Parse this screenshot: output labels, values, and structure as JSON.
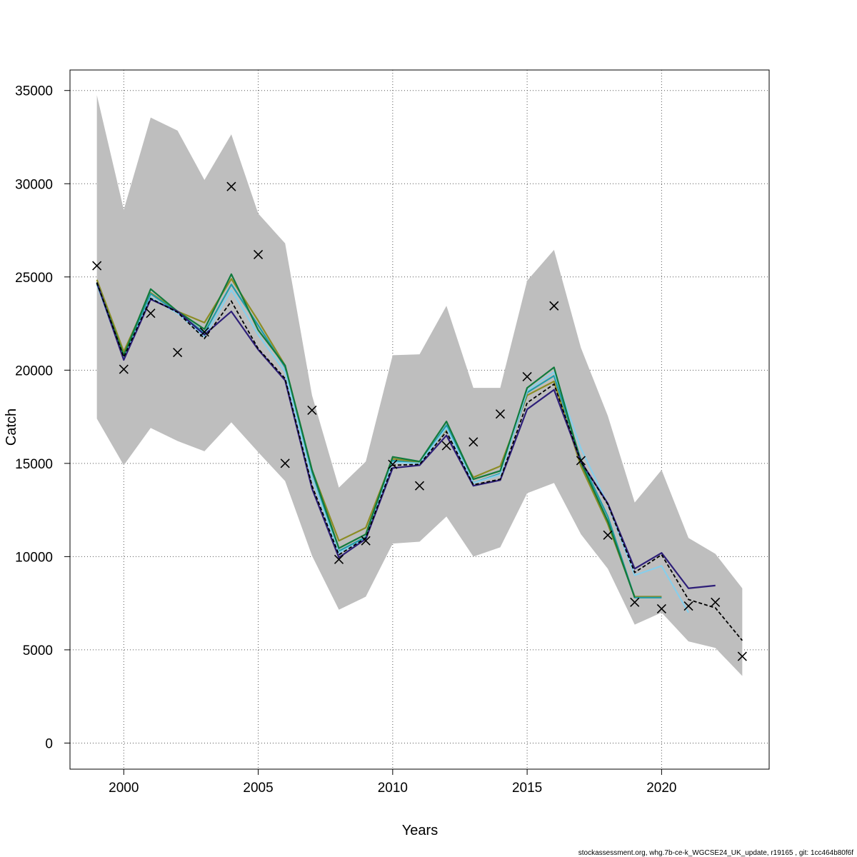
{
  "chart_data": {
    "type": "line",
    "title": "",
    "xlabel": "Years",
    "ylabel": "Catch",
    "xlim": [
      1998,
      2024
    ],
    "ylim": [
      -1400,
      36100
    ],
    "x_ticks": [
      2000,
      2005,
      2010,
      2015,
      2020
    ],
    "y_ticks": [
      0,
      5000,
      10000,
      15000,
      20000,
      25000,
      30000,
      35000
    ],
    "grid": true,
    "footer": "stockassessment.org, whg.7b-ce-k_WGCSE24_UK_update, r19165 , git: 1cc464b80f6f",
    "confidence_band": {
      "color": "#bebebe",
      "x": [
        1999,
        2000,
        2001,
        2002,
        2003,
        2004,
        2005,
        2006,
        2007,
        2008,
        2009,
        2010,
        2011,
        2012,
        2013,
        2014,
        2015,
        2016,
        2017,
        2018,
        2019,
        2020,
        2021,
        2022,
        2023
      ],
      "lower": [
        17400,
        14900,
        16900,
        16200,
        15650,
        17200,
        15600,
        14050,
        10050,
        7150,
        7850,
        10700,
        10800,
        12150,
        10000,
        10500,
        13400,
        13950,
        11200,
        9350,
        6350,
        7000,
        5450,
        5100,
        3600
      ],
      "upper": [
        34750,
        28600,
        33550,
        32850,
        30200,
        32650,
        28400,
        26800,
        18650,
        13700,
        15100,
        20800,
        20850,
        23450,
        19050,
        19050,
        24800,
        26450,
        21200,
        17550,
        12900,
        14650,
        11000,
        10150,
        8300
      ]
    },
    "observed": {
      "marker": "x",
      "x": [
        1999,
        2000,
        2001,
        2002,
        2003,
        2004,
        2005,
        2006,
        2007,
        2008,
        2009,
        2010,
        2011,
        2012,
        2013,
        2014,
        2015,
        2016,
        2017,
        2018,
        2019,
        2020,
        2021,
        2022,
        2023
      ],
      "values": [
        25600,
        20050,
        23050,
        20950,
        22050,
        29850,
        26200,
        15000,
        17850,
        9850,
        10850,
        14950,
        13800,
        15950,
        16150,
        17650,
        19650,
        23450,
        15150,
        11150,
        7550,
        7200,
        7350,
        7550,
        4650
      ]
    },
    "series": [
      {
        "color": "#8c8c24",
        "x": [
          1999,
          2000,
          2001,
          2002,
          2003,
          2004,
          2005,
          2006,
          2007,
          2008,
          2009,
          2010,
          2011,
          2012,
          2013,
          2014,
          2015,
          2016,
          2017,
          2018,
          2019,
          2020
        ],
        "values": [
          24850,
          21000,
          24150,
          23150,
          22550,
          24900,
          22650,
          20250,
          14650,
          10850,
          11550,
          15250,
          15050,
          16850,
          14250,
          14850,
          18650,
          19400,
          14850,
          11750,
          7850,
          7850
        ]
      },
      {
        "color": "#1f9ca8",
        "x": [
          1999,
          2000,
          2001,
          2002,
          2003,
          2004,
          2005,
          2006,
          2007,
          2008,
          2009,
          2010,
          2011,
          2012,
          2013,
          2014,
          2015,
          2016,
          2017,
          2018,
          2019,
          2020
        ],
        "values": [
          24700,
          20700,
          24100,
          23100,
          22000,
          24600,
          22400,
          20150,
          14550,
          10300,
          11050,
          15150,
          15000,
          17050,
          13950,
          14450,
          18800,
          19700,
          15200,
          12150,
          7800,
          7800
        ]
      },
      {
        "color": "#87ceeb",
        "x": [
          1999,
          2000,
          2001,
          2002,
          2003,
          2004,
          2005,
          2006,
          2007,
          2008,
          2009,
          2010,
          2011,
          2012,
          2013,
          2014,
          2015,
          2016,
          2017,
          2018,
          2019,
          2020,
          2021
        ],
        "values": [
          24600,
          20600,
          23900,
          23050,
          21800,
          24300,
          21900,
          19900,
          14200,
          10200,
          10950,
          15050,
          15000,
          16900,
          13950,
          14400,
          18900,
          19900,
          15800,
          12800,
          9000,
          9500,
          7000
        ]
      },
      {
        "color": "#117a3c",
        "x": [
          1999,
          2000,
          2001,
          2002,
          2003,
          2004,
          2005,
          2006,
          2007,
          2008,
          2009,
          2010,
          2011,
          2012,
          2013,
          2014,
          2015,
          2016,
          2017,
          2018,
          2019
        ],
        "values": [
          24650,
          20800,
          24350,
          23150,
          22200,
          25150,
          22150,
          20250,
          14650,
          10450,
          11200,
          15350,
          15100,
          17250,
          14150,
          14600,
          19050,
          20150,
          15050,
          11900,
          7800
        ]
      },
      {
        "color": "#2d1e78",
        "x": [
          1999,
          2000,
          2001,
          2002,
          2003,
          2004,
          2005,
          2006,
          2007,
          2008,
          2009,
          2010,
          2011,
          2012,
          2013,
          2014,
          2015,
          2016,
          2017,
          2018,
          2019,
          2020,
          2021,
          2022
        ],
        "values": [
          24700,
          20550,
          23800,
          23150,
          21900,
          23150,
          21100,
          19450,
          13650,
          9950,
          10950,
          14750,
          14900,
          16500,
          13800,
          14100,
          17900,
          18950,
          15100,
          12850,
          9350,
          10200,
          8300,
          8450
        ]
      }
    ],
    "estimate": {
      "color": "#000000",
      "style": "dashed",
      "x": [
        1999,
        2000,
        2001,
        2002,
        2003,
        2004,
        2005,
        2006,
        2007,
        2008,
        2009,
        2010,
        2011,
        2012,
        2013,
        2014,
        2015,
        2016,
        2017,
        2018,
        2019,
        2020,
        2021,
        2022,
        2023
      ],
      "values": [
        24700,
        20700,
        23850,
        23100,
        21700,
        23700,
        21150,
        19550,
        13800,
        10100,
        11000,
        14900,
        14950,
        16700,
        13850,
        14150,
        18250,
        19250,
        15100,
        12800,
        9150,
        10100,
        7700,
        7250,
        5500
      ]
    }
  }
}
